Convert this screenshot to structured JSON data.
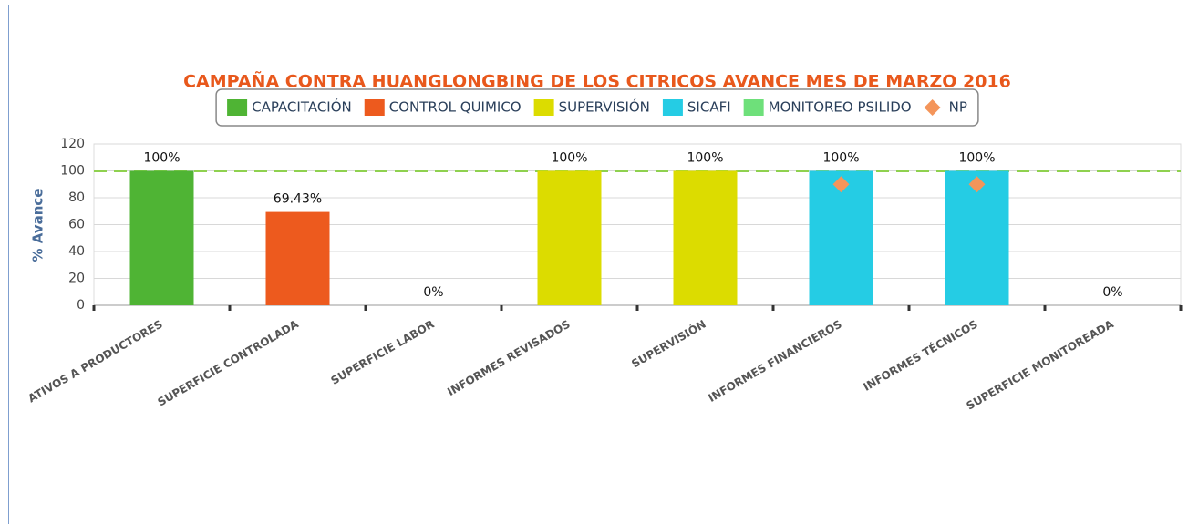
{
  "chart_data": {
    "type": "bar",
    "title": "CAMPAÑA CONTRA HUANGLONGBING DE LOS CITRICOS AVANCE MES DE MARZO 2016",
    "y_label": "% Avance",
    "categories": [
      "ATIVOS A PRODUCTORES",
      "SUPERFICIE CONTROLADA",
      "SUPERFICIE LABOR",
      "INFORMES REVISADOS",
      "SUPERVISIÓN",
      "INFORMES FINANCIEROS",
      "INFORMES TÉCNICOS",
      "SUPERFICIE MONITOREADA"
    ],
    "series": [
      {
        "name": "CAPACITACIÓN",
        "color": "#4fb434",
        "values": [
          100,
          null,
          null,
          null,
          null,
          null,
          null,
          null
        ],
        "value_labels": [
          "100%",
          null,
          null,
          null,
          null,
          null,
          null,
          null
        ]
      },
      {
        "name": "CONTROL QUIMICO",
        "color": "#ed5a1e",
        "values": [
          null,
          69.43,
          0,
          null,
          null,
          null,
          null,
          null
        ],
        "value_labels": [
          null,
          "69.43%",
          "0%",
          null,
          null,
          null,
          null,
          null
        ]
      },
      {
        "name": "SUPERVISIÓN",
        "color": "#dcdc00",
        "values": [
          null,
          null,
          null,
          100,
          100,
          null,
          null,
          null
        ],
        "value_labels": [
          null,
          null,
          null,
          "100%",
          "100%",
          null,
          null,
          null
        ]
      },
      {
        "name": "SICAFI",
        "color": "#25cce4",
        "values": [
          null,
          null,
          null,
          null,
          null,
          100,
          100,
          null
        ],
        "value_labels": [
          null,
          null,
          null,
          null,
          null,
          "100%",
          "100%",
          null
        ]
      },
      {
        "name": "MONITOREO PSILIDO",
        "color": "#6ee07a",
        "values": [
          null,
          null,
          null,
          null,
          null,
          null,
          null,
          0
        ],
        "value_labels": [
          null,
          null,
          null,
          null,
          null,
          null,
          null,
          "0%"
        ]
      },
      {
        "name": "NP",
        "color": "#f4955a",
        "type": "scatter",
        "values": [
          null,
          null,
          null,
          null,
          null,
          90,
          90,
          null
        ]
      }
    ],
    "reference_line": {
      "value": 100,
      "color": "#8fd14f"
    },
    "ylim": [
      0,
      120
    ],
    "yticks": [
      0,
      20,
      40,
      60,
      80,
      100,
      120
    ],
    "grid": true
  }
}
